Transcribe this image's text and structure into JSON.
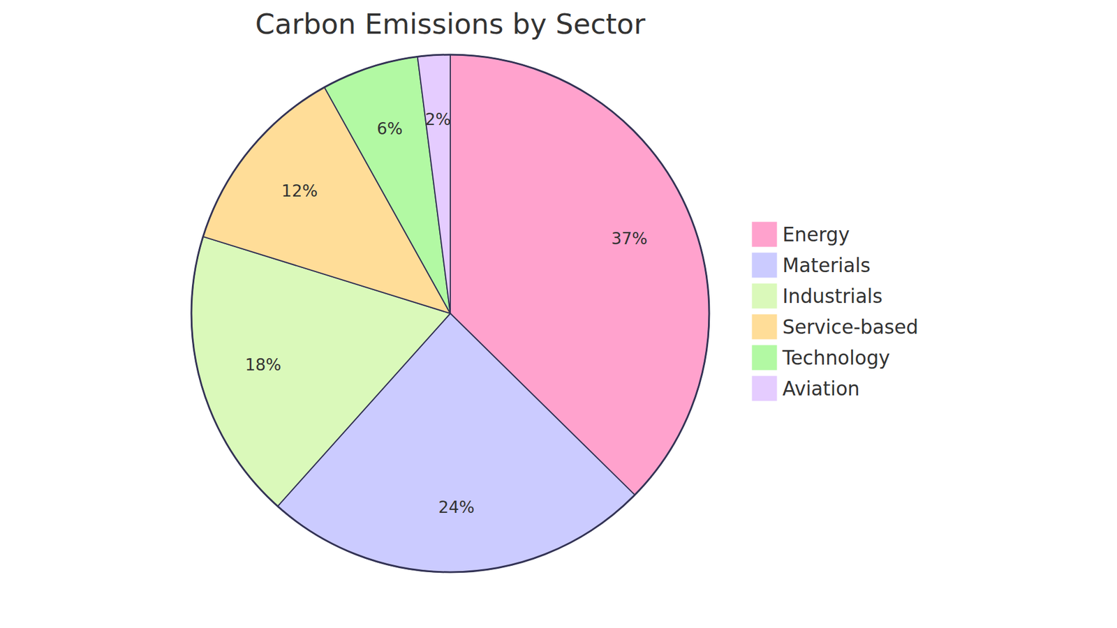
{
  "chart_data": {
    "type": "pie",
    "title": "Carbon Emissions by Sector",
    "categories": [
      "Energy",
      "Materials",
      "Industrials",
      "Service-based",
      "Technology",
      "Aviation"
    ],
    "values": [
      37,
      24,
      18,
      12,
      6,
      2
    ],
    "value_labels": [
      "37%",
      "24%",
      "18%",
      "12%",
      "6%",
      "2%"
    ],
    "colors": [
      "#ffa2cd",
      "#cbcbff",
      "#daf9ba",
      "#ffdd98",
      "#b2f9a3",
      "#e5ccff"
    ],
    "data_labels": true,
    "legend": "right"
  }
}
